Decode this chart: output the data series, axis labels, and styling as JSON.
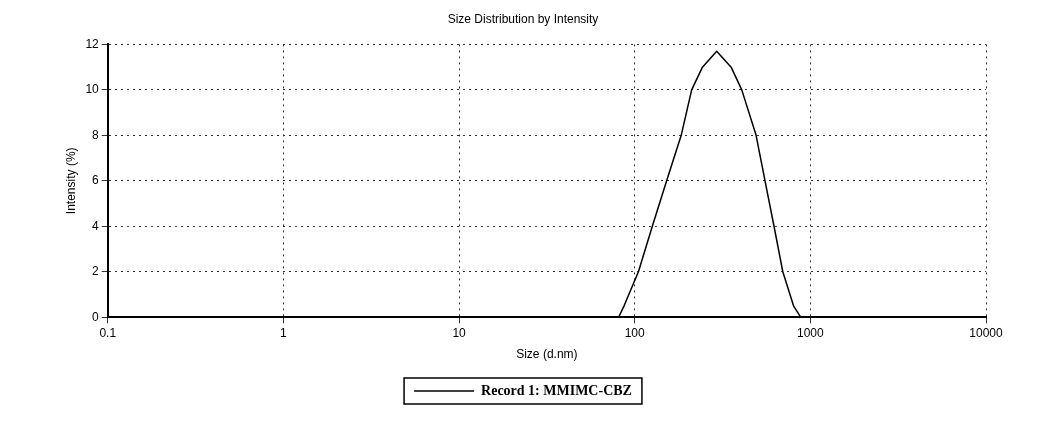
{
  "chart_data": {
    "type": "line",
    "title": "Size Distribution by Intensity",
    "xlabel": "Size (d.nm)",
    "ylabel": "Intensity (%)",
    "series": [
      {
        "name": "Record 1: MMIMC-CBZ",
        "color": "#000000",
        "x": [
          81,
          87,
          105,
          126,
          152,
          184,
          211,
          243,
          293,
          354,
          407,
          491,
          552,
          621,
          697,
          802,
          881
        ],
        "values": [
          0,
          0.5,
          2,
          4,
          6,
          8,
          10,
          11,
          11.7,
          11,
          10,
          8,
          6,
          4,
          2,
          0.5,
          0
        ]
      }
    ],
    "log": "x",
    "xlim": [
      0.1,
      10000
    ],
    "xticks": [
      0.1,
      1,
      10,
      100,
      1000,
      10000
    ],
    "ylim": [
      0,
      12
    ],
    "yticks": [
      0,
      2,
      4,
      6,
      8,
      10,
      12
    ],
    "grid": true,
    "legend": "bottom",
    "marker": "none",
    "line_style": "solid"
  }
}
